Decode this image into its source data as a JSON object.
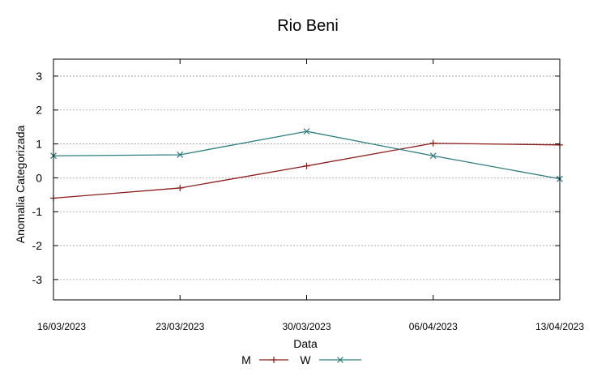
{
  "chart_data": {
    "type": "line",
    "title": "Rio Beni",
    "xlabel": "Data",
    "ylabel": "Anomalia Categorizada",
    "x": [
      "16/03/2023",
      "23/03/2023",
      "30/03/2023",
      "06/04/2023",
      "13/04/2023"
    ],
    "ylim": [
      -3.6,
      3.5
    ],
    "yticks": [
      -3,
      -2,
      -1,
      0,
      1,
      2,
      3
    ],
    "grid": true,
    "legend_position": "bottom",
    "series": [
      {
        "name": "M",
        "color": "#8b1a1a",
        "marker": "plus",
        "values": [
          -0.6,
          -0.3,
          0.35,
          1.02,
          0.97
        ]
      },
      {
        "name": "W",
        "color": "#2e7d80",
        "marker": "cross",
        "values": [
          0.65,
          0.68,
          1.37,
          0.65,
          -0.03
        ]
      }
    ]
  }
}
